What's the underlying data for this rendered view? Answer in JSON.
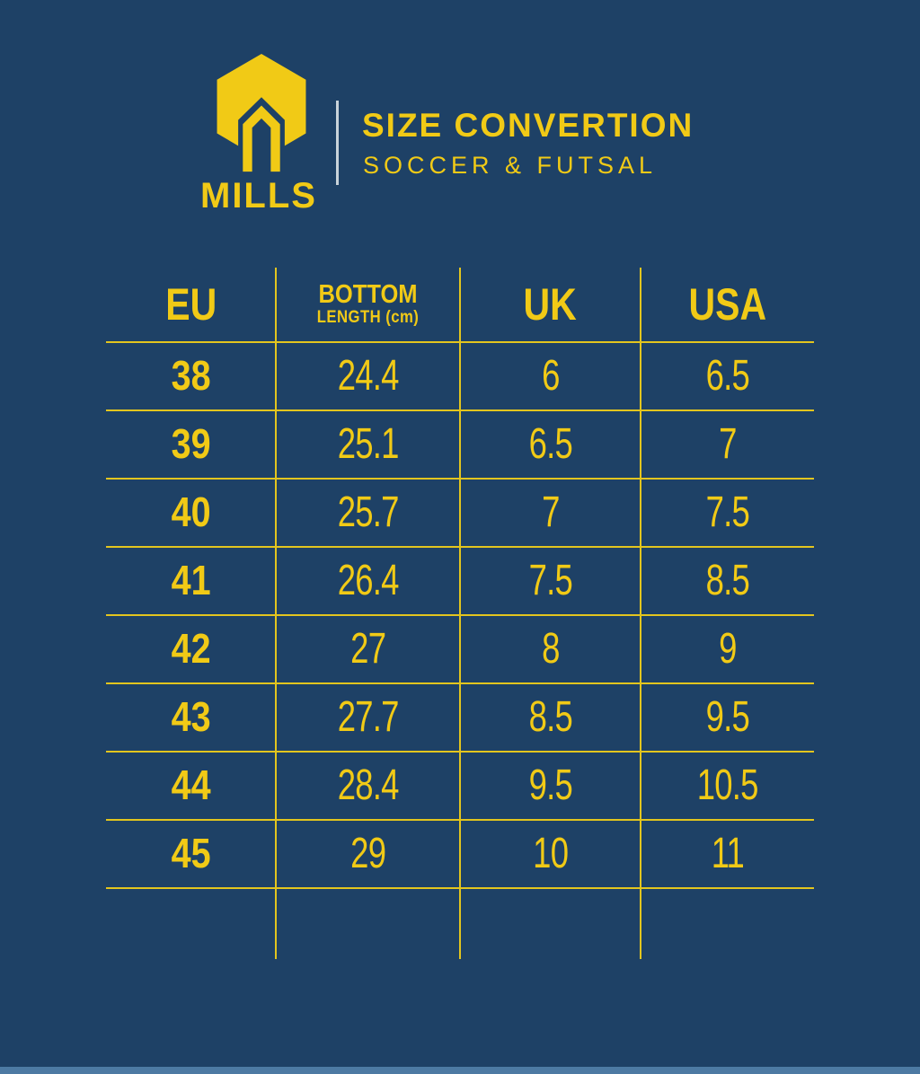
{
  "brand": {
    "name": "MILLS",
    "logo": "hexagon-m-logo"
  },
  "header": {
    "title": "SIZE CONVERTION",
    "subtitle": "SOCCER & FUTSAL"
  },
  "table": {
    "headers": {
      "eu": "EU",
      "bottom_line1": "BOTTOM",
      "bottom_line2": "LENGTH (cm)",
      "uk": "UK",
      "usa": "USA"
    },
    "rows": [
      {
        "eu": "38",
        "bottom": "24.4",
        "uk": "6",
        "usa": "6.5"
      },
      {
        "eu": "39",
        "bottom": "25.1",
        "uk": "6.5",
        "usa": "7"
      },
      {
        "eu": "40",
        "bottom": "25.7",
        "uk": "7",
        "usa": "7.5"
      },
      {
        "eu": "41",
        "bottom": "26.4",
        "uk": "7.5",
        "usa": "8.5"
      },
      {
        "eu": "42",
        "bottom": "27",
        "uk": "8",
        "usa": "9"
      },
      {
        "eu": "43",
        "bottom": "27.7",
        "uk": "8.5",
        "usa": "9.5"
      },
      {
        "eu": "44",
        "bottom": "28.4",
        "uk": "9.5",
        "usa": "10.5"
      },
      {
        "eu": "45",
        "bottom": "29",
        "uk": "10",
        "usa": "11"
      }
    ]
  },
  "colors": {
    "background": "#1e4166",
    "accent_yellow": "#f1ca16",
    "grid_line": "#e3c51e",
    "divider_light": "#c9d3da",
    "footer_strip": "#4d7aa3"
  },
  "chart_data": {
    "type": "table",
    "title": "SIZE CONVERTION",
    "subtitle": "SOCCER & FUTSAL",
    "columns": [
      "EU",
      "BOTTOM LENGTH (cm)",
      "UK",
      "USA"
    ],
    "rows": [
      [
        38,
        24.4,
        6,
        6.5
      ],
      [
        39,
        25.1,
        6.5,
        7
      ],
      [
        40,
        25.7,
        7,
        7.5
      ],
      [
        41,
        26.4,
        7.5,
        8.5
      ],
      [
        42,
        27,
        8,
        9
      ],
      [
        43,
        27.7,
        8.5,
        9.5
      ],
      [
        44,
        28.4,
        9.5,
        10.5
      ],
      [
        45,
        29,
        10,
        11
      ]
    ],
    "legend_position": "none",
    "grid": true
  }
}
